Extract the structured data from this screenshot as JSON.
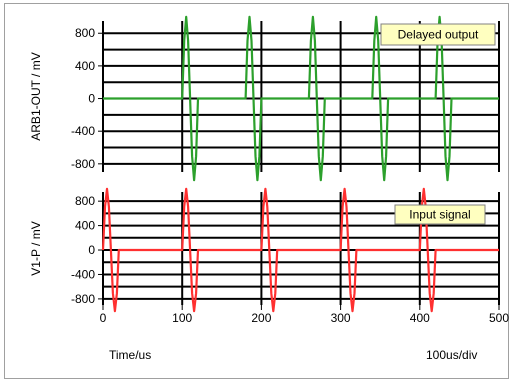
{
  "chart_data": [
    {
      "type": "line",
      "ylabel": "ARB1-OUT / mV",
      "ylim": [
        -900,
        950
      ],
      "yticks": [
        800,
        400,
        0,
        -400,
        -800
      ],
      "xlim": [
        0,
        500
      ],
      "legend": "Delayed output",
      "legend_position": "top-right",
      "color": "#2ca02c",
      "series": [
        {
          "name": "Delayed output",
          "x": [
            0,
            100,
            102.5,
            105,
            107.5,
            110,
            112.5,
            115,
            117.5,
            120,
            180,
            182.5,
            185,
            187.5,
            190,
            192.5,
            195,
            197.5,
            200,
            260,
            262.5,
            265,
            267.5,
            270,
            272.5,
            275,
            277.5,
            280,
            340,
            342.5,
            345,
            347.5,
            350,
            352.5,
            355,
            357.5,
            360,
            420,
            422.5,
            425,
            427.5,
            430,
            432.5,
            435,
            437.5,
            440,
            500
          ],
          "values": [
            0,
            0,
            707,
            1000,
            707,
            0,
            -707,
            -1000,
            -707,
            0,
            0,
            707,
            1000,
            707,
            0,
            -707,
            -1000,
            -707,
            0,
            0,
            707,
            1000,
            707,
            0,
            -707,
            -1000,
            -707,
            0,
            0,
            707,
            1000,
            707,
            0,
            -707,
            -1000,
            -707,
            0,
            0,
            707,
            1000,
            707,
            0,
            -707,
            -1000,
            -707,
            0,
            0
          ]
        }
      ]
    },
    {
      "type": "line",
      "ylabel": "V1-P / mV",
      "ylim": [
        -900,
        950
      ],
      "yticks": [
        800,
        600,
        400,
        200,
        0,
        -200,
        -400,
        -600,
        -800
      ],
      "ytick_labels": [
        "800",
        "400",
        "0",
        "-400",
        "-800"
      ],
      "xlim": [
        0,
        500
      ],
      "xticks": [
        0,
        100,
        200,
        300,
        400,
        500
      ],
      "legend": "Input signal",
      "legend_position": "top-right",
      "color": "#ff3030",
      "series": [
        {
          "name": "Input signal",
          "x": [
            0,
            2.5,
            5,
            7.5,
            10,
            12.5,
            15,
            17.5,
            20,
            100,
            102.5,
            105,
            107.5,
            110,
            112.5,
            115,
            117.5,
            120,
            200,
            202.5,
            205,
            207.5,
            210,
            212.5,
            215,
            217.5,
            220,
            300,
            302.5,
            305,
            307.5,
            310,
            312.5,
            315,
            317.5,
            320,
            400,
            402.5,
            405,
            407.5,
            410,
            412.5,
            415,
            417.5,
            420,
            500
          ],
          "values": [
            0,
            707,
            1000,
            707,
            0,
            -707,
            -1000,
            -707,
            0,
            0,
            707,
            1000,
            707,
            0,
            -707,
            -1000,
            -707,
            0,
            0,
            707,
            1000,
            707,
            0,
            -707,
            -1000,
            -707,
            0,
            0,
            707,
            1000,
            707,
            0,
            -707,
            -1000,
            -707,
            0,
            0,
            707,
            1000,
            707,
            0,
            -707,
            -1000,
            -707,
            0,
            0
          ]
        }
      ]
    }
  ],
  "footer": {
    "xlabel": "Time/us",
    "scale": "100us/div"
  }
}
